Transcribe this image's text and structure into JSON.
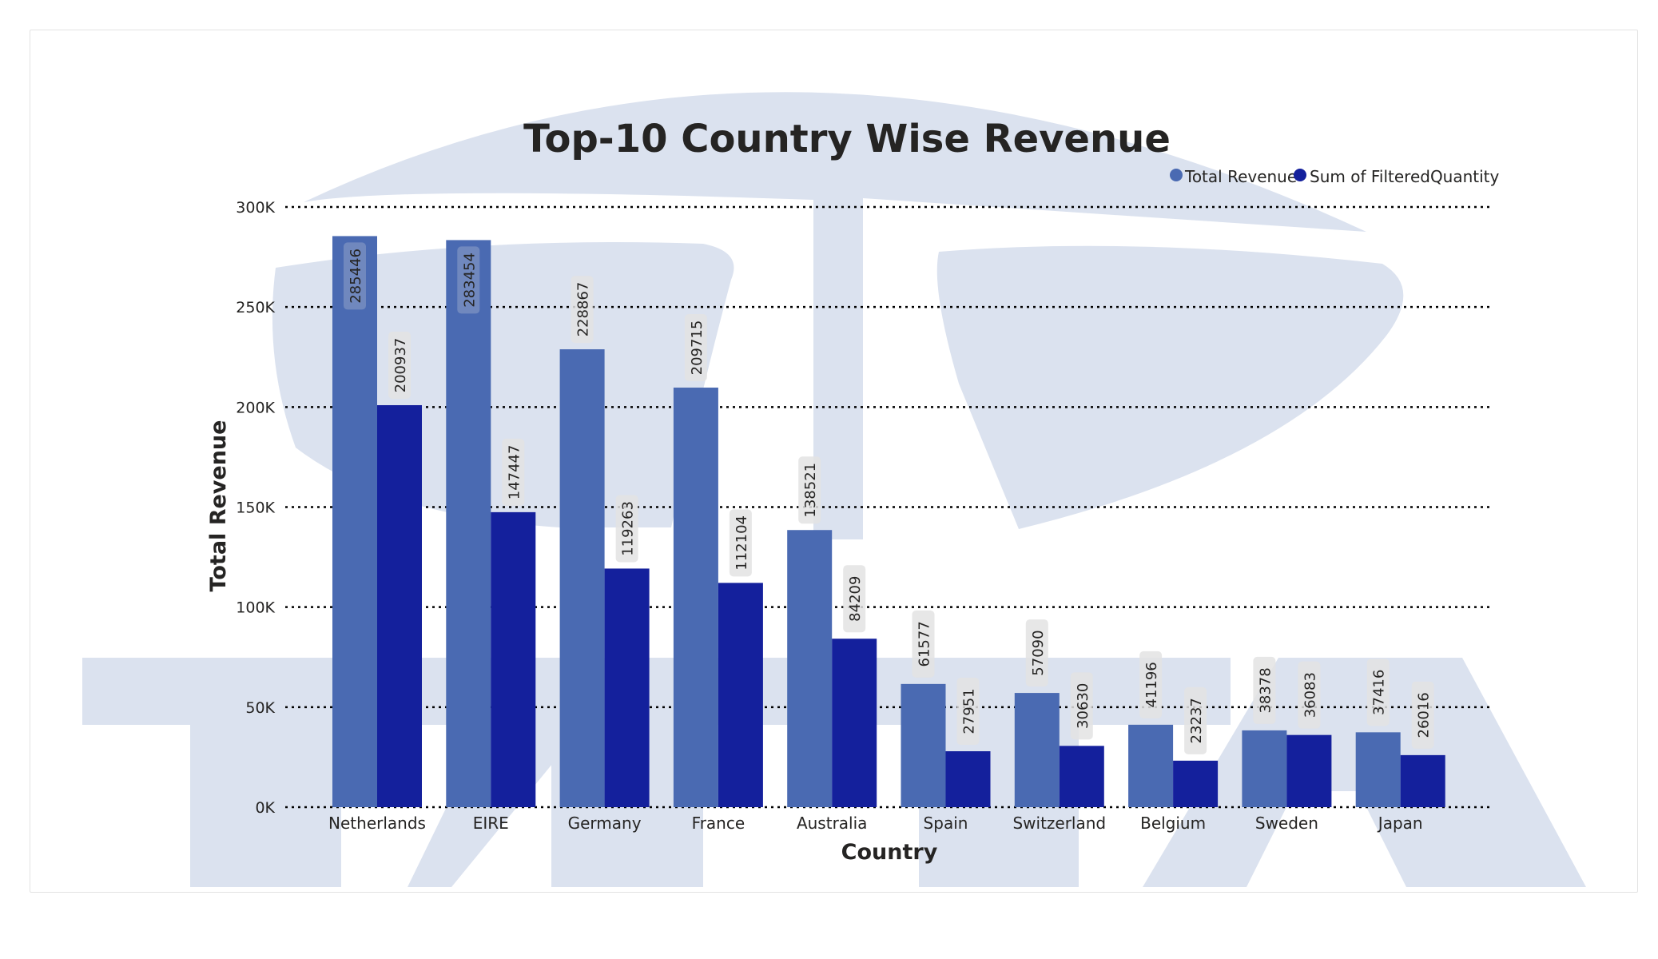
{
  "chart_data": {
    "type": "bar",
    "title": "Top-10 Country Wise Revenue",
    "xlabel": "Country",
    "ylabel": "Total Revenue",
    "categories": [
      "Netherlands",
      "EIRE",
      "Germany",
      "France",
      "Australia",
      "Spain",
      "Switzerland",
      "Belgium",
      "Sweden",
      "Japan"
    ],
    "series": [
      {
        "name": "Total Revenue",
        "color": "#4a6ab2",
        "values": [
          285446,
          283454,
          228867,
          209715,
          138521,
          61577,
          57090,
          41196,
          38378,
          37416
        ]
      },
      {
        "name": "Sum of FilteredQuantity",
        "color": "#14209c",
        "values": [
          200937,
          147447,
          119263,
          112104,
          84209,
          27951,
          30630,
          23237,
          36083,
          26016
        ]
      }
    ],
    "ylim": [
      0,
      300000
    ],
    "yticks": [
      "0K",
      "50K",
      "100K",
      "150K",
      "200K",
      "250K",
      "300K"
    ],
    "ytick_values": [
      0,
      50000,
      100000,
      150000,
      200000,
      250000,
      300000
    ],
    "grid": true,
    "grid_style": "dotted",
    "legend_position": "top-right",
    "data_labels": "vertical-inside-top"
  },
  "watermark": {
    "text": "TTA",
    "color": "#dbe2ef"
  }
}
